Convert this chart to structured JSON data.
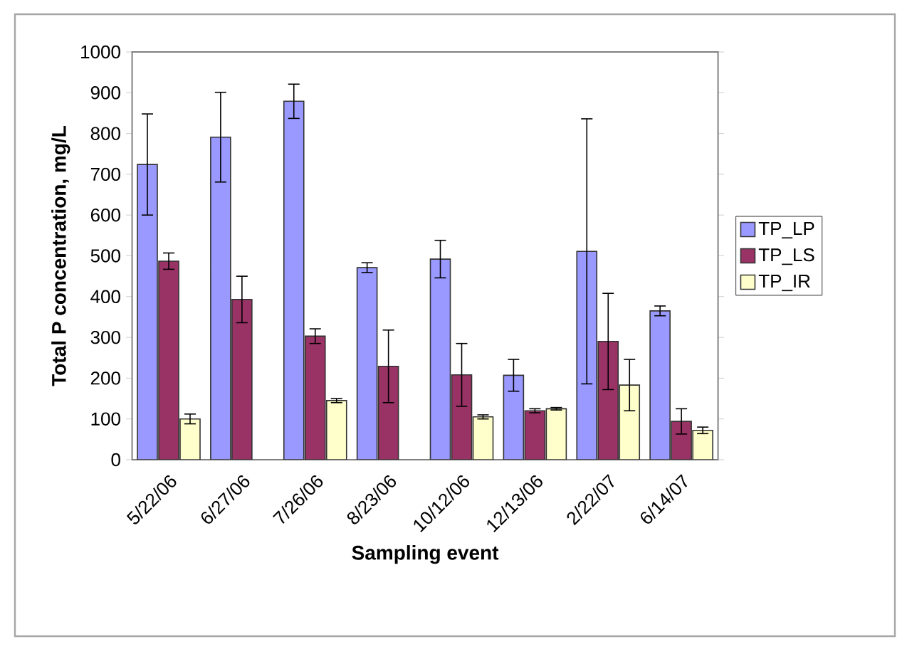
{
  "chart_data": {
    "type": "bar",
    "xlabel": "Sampling event",
    "ylabel": "Total P concentration, mg/L",
    "categories": [
      "5/22/06",
      "6/27/06",
      "7/26/06",
      "8/23/06",
      "10/12/06",
      "12/13/06",
      "2/22/07",
      "6/14/07"
    ],
    "series": [
      {
        "name": "TP_LP",
        "color": "#9999ff",
        "values": [
          724,
          791,
          879,
          471,
          492,
          207,
          511,
          365
        ],
        "errors": [
          124,
          110,
          42,
          12,
          46,
          39,
          325,
          12
        ]
      },
      {
        "name": "TP_LS",
        "color": "#993366",
        "values": [
          487,
          393,
          303,
          229,
          208,
          120,
          290,
          94
        ],
        "errors": [
          20,
          57,
          18,
          89,
          77,
          5,
          118,
          31
        ]
      },
      {
        "name": "TP_IR",
        "color": "#ffffcc",
        "values": [
          100,
          null,
          145,
          null,
          105,
          125,
          183,
          72
        ],
        "errors": [
          12,
          null,
          5,
          null,
          5,
          3,
          63,
          8
        ]
      }
    ],
    "ylim": [
      0,
      1000
    ],
    "yticks": [
      0,
      100,
      200,
      300,
      400,
      500,
      600,
      700,
      800,
      900,
      1000
    ],
    "grid": false,
    "legend": "right"
  }
}
